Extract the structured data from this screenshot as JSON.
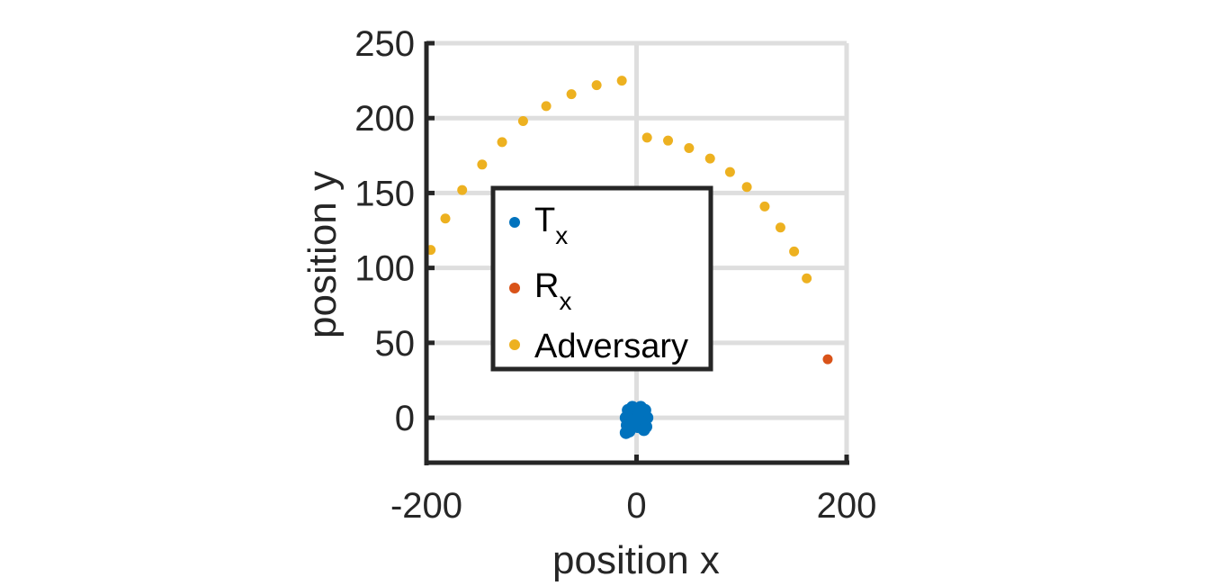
{
  "chart_data": {
    "type": "scatter",
    "xlabel": "position x",
    "ylabel": "position y",
    "xlim": [
      -200,
      200
    ],
    "ylim": [
      -30,
      250
    ],
    "xticks": [
      -200,
      0,
      200
    ],
    "yticks": [
      0,
      50,
      100,
      150,
      200,
      250
    ],
    "xtick_labels": [
      "-200",
      "0",
      "200"
    ],
    "ytick_labels": [
      "0",
      "50",
      "100",
      "150",
      "200",
      "250"
    ],
    "grid": true,
    "legend_position": "center",
    "series": [
      {
        "name": "Tx",
        "name_main": "T",
        "name_sub": "x",
        "color": "#0072BD",
        "points": [
          [
            -8,
            5
          ],
          [
            -4,
            7
          ],
          [
            0,
            6
          ],
          [
            4,
            7
          ],
          [
            8,
            5
          ],
          [
            -10,
            0
          ],
          [
            -6,
            1
          ],
          [
            -2,
            -1
          ],
          [
            2,
            2
          ],
          [
            6,
            0
          ],
          [
            10,
            0
          ],
          [
            -9,
            -5
          ],
          [
            -5,
            -4
          ],
          [
            1,
            -6
          ],
          [
            5,
            -3
          ],
          [
            9,
            -6
          ],
          [
            -10,
            -10
          ],
          [
            -7,
            -9
          ],
          [
            -3,
            -2
          ],
          [
            3,
            4
          ],
          [
            7,
            -8
          ]
        ]
      },
      {
        "name": "Rx",
        "name_main": "R",
        "name_sub": "x",
        "color": "#D95319",
        "points": [
          [
            182,
            39
          ]
        ]
      },
      {
        "name": "Adversary",
        "color": "#EDB120",
        "points": [
          [
            -196,
            112
          ],
          [
            -182,
            133
          ],
          [
            -166,
            152
          ],
          [
            -147,
            169
          ],
          [
            -128,
            184
          ],
          [
            -108,
            198
          ],
          [
            -86,
            208
          ],
          [
            -62,
            216
          ],
          [
            -38,
            222
          ],
          [
            -14,
            225
          ],
          [
            10,
            187
          ],
          [
            30,
            185
          ],
          [
            50,
            180
          ],
          [
            70,
            173
          ],
          [
            89,
            164
          ],
          [
            105,
            154
          ],
          [
            122,
            141
          ],
          [
            137,
            127
          ],
          [
            150,
            111
          ],
          [
            162,
            93
          ]
        ]
      }
    ]
  }
}
